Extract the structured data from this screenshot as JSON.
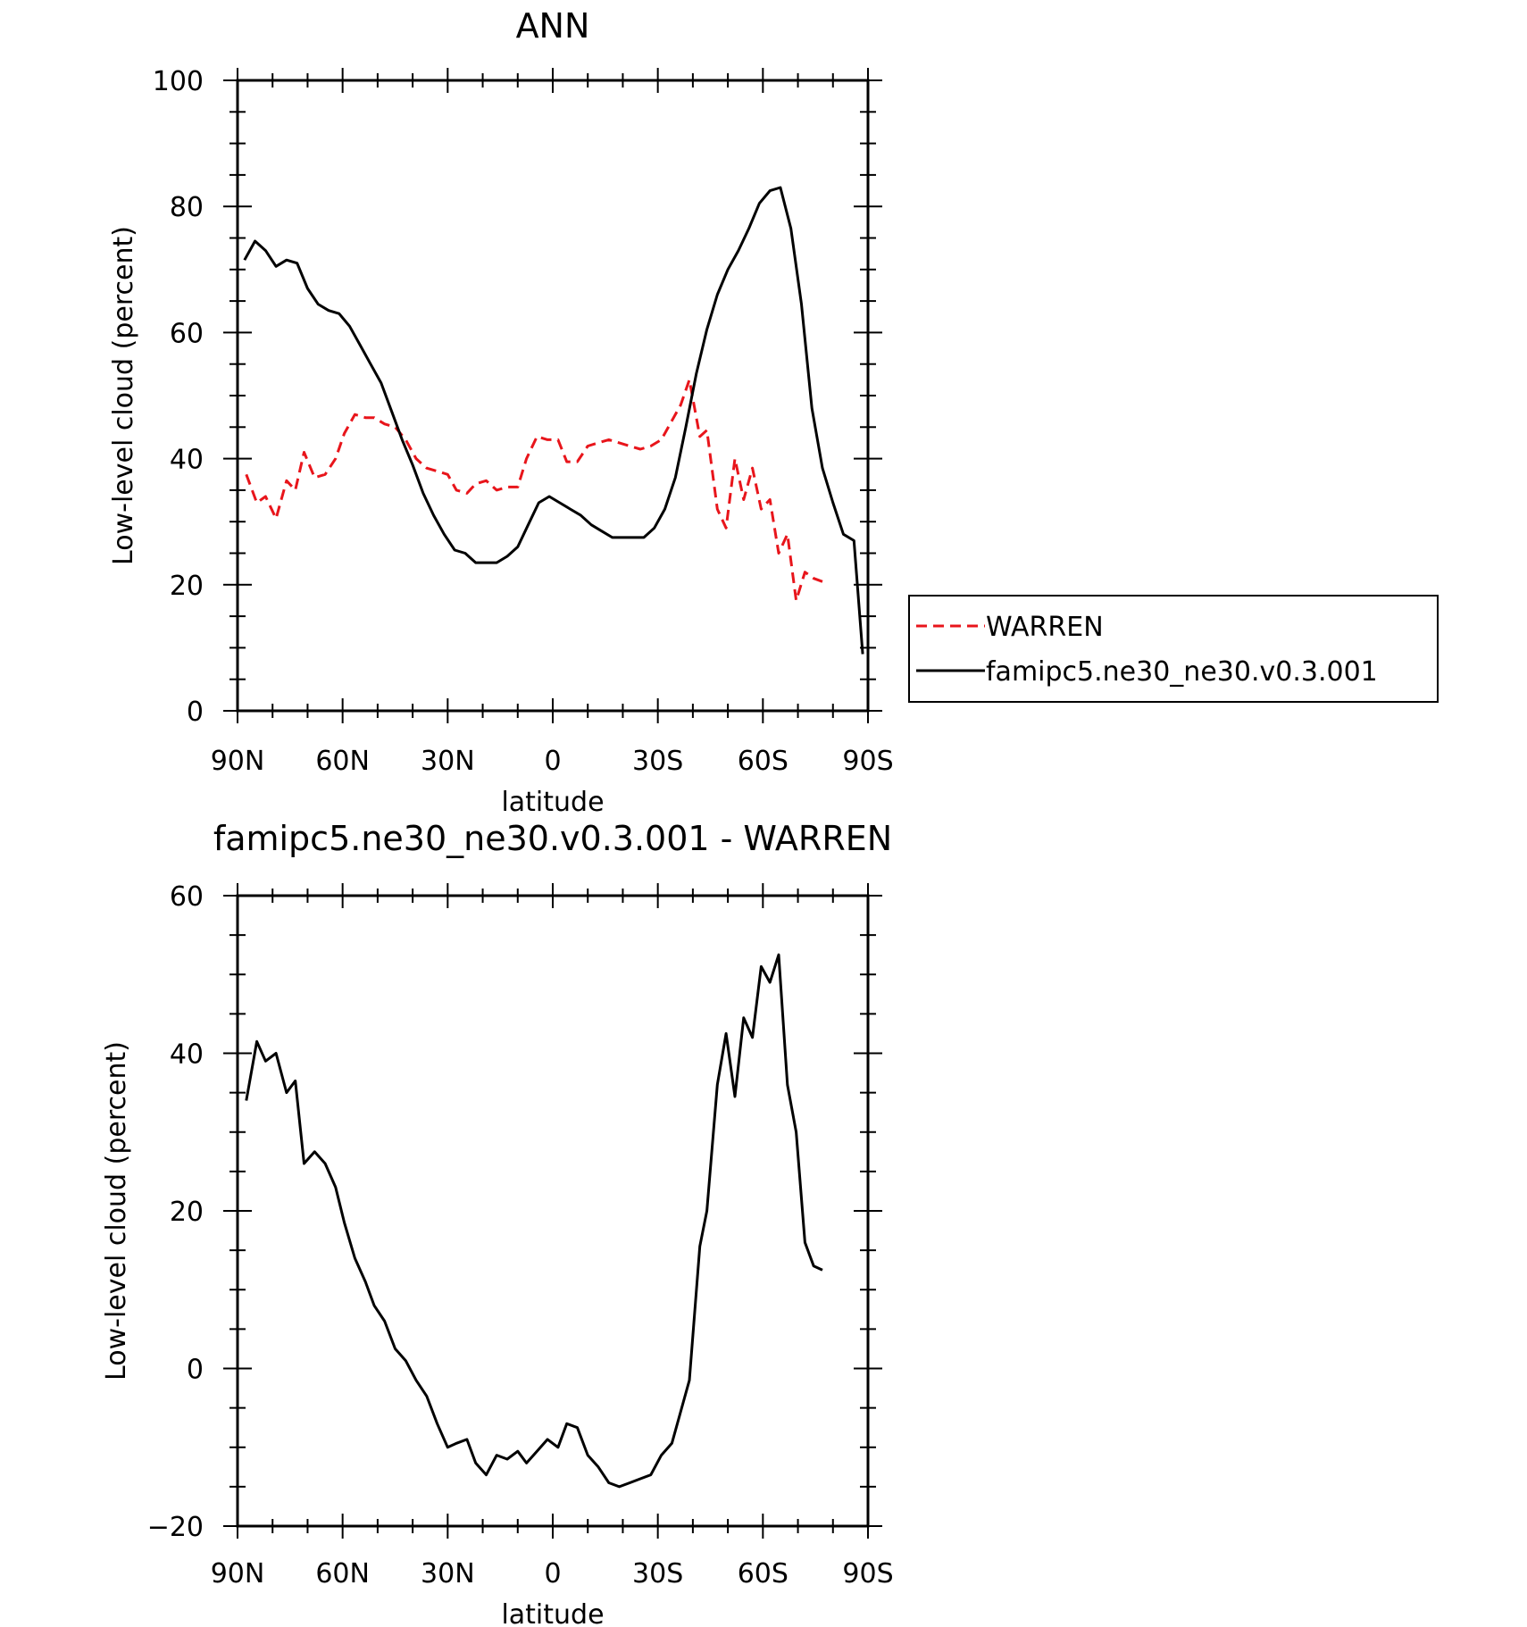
{
  "chart_data": [
    {
      "type": "line",
      "title": "ANN",
      "xlabel": "latitude",
      "ylabel": "Low-level cloud (percent)",
      "ylim": [
        0,
        100
      ],
      "xlim": [
        90,
        -90
      ],
      "x_unit_note": "",
      "xticks": [
        {
          "value": 90,
          "label": "90N"
        },
        {
          "value": 60,
          "label": "60N"
        },
        {
          "value": 30,
          "label": "30N"
        },
        {
          "value": 0,
          "label": "0"
        },
        {
          "value": -30,
          "label": "30S"
        },
        {
          "value": -60,
          "label": "60S"
        },
        {
          "value": -90,
          "label": "90S"
        }
      ],
      "yticks": [
        0,
        20,
        40,
        60,
        80,
        100
      ],
      "grid": false,
      "legend_position": "right",
      "series": [
        {
          "name": "WARREN",
          "color": "#e8151b",
          "style": "dashed",
          "x": [
            87.5,
            84.5,
            82,
            79,
            76,
            73.5,
            71,
            68,
            65,
            62,
            59.5,
            56.5,
            53.5,
            51,
            48,
            45,
            42,
            39,
            36,
            33,
            30,
            27.5,
            24.5,
            22,
            19,
            16,
            13,
            10,
            7.5,
            4.5,
            1.5,
            -1.5,
            -4,
            -7,
            -10,
            -13,
            -16,
            -19,
            -22,
            -25,
            -28,
            -31,
            -34,
            -36.5,
            -39,
            -42,
            -44,
            -47,
            -49.5,
            -52,
            -54.5,
            -57,
            -59.5,
            -62,
            -64.5,
            -67,
            -69.5,
            -72,
            -74.5,
            -77
          ],
          "y": [
            37.5,
            33,
            34,
            30.5,
            36.5,
            35,
            41,
            37,
            37.5,
            40,
            44,
            47,
            46.5,
            46.5,
            45.5,
            45,
            43,
            40,
            38.5,
            38,
            37.5,
            35,
            34.5,
            36,
            36.5,
            35,
            35.5,
            35.5,
            40,
            43.5,
            43,
            43,
            39.5,
            39.5,
            42,
            42.5,
            43,
            42.5,
            42,
            41.5,
            42,
            43,
            46,
            48.5,
            52.5,
            43.5,
            44.5,
            32,
            29,
            40,
            33.5,
            38.5,
            32,
            33.5,
            25,
            28,
            17.5,
            22,
            21,
            20.5
          ]
        },
        {
          "name": "famipc5.ne30_ne30.v0.3.001",
          "color": "#000000",
          "style": "solid",
          "x": [
            88,
            85,
            82,
            79,
            76,
            73,
            70,
            67,
            64,
            61,
            58,
            55,
            52,
            49,
            46,
            43,
            40,
            37,
            34,
            31,
            28,
            25,
            22,
            19,
            16,
            13,
            10,
            7,
            4,
            1,
            -2,
            -5,
            -8,
            -11,
            -14,
            -17,
            -20,
            -23,
            -26,
            -29,
            -32,
            -35,
            -38,
            -41,
            -44,
            -47,
            -50,
            -53,
            -56,
            -59,
            -62,
            -65,
            -68,
            -71,
            -74,
            -77,
            -80,
            -83,
            -86,
            -88.5
          ],
          "y": [
            71.5,
            74.5,
            73,
            70.5,
            71.5,
            71,
            67,
            64.5,
            63.5,
            63,
            61,
            58,
            55,
            52,
            47.5,
            43,
            39,
            34.5,
            31,
            28,
            25.5,
            25,
            23.5,
            23.5,
            23.5,
            24.5,
            26,
            29.5,
            33,
            34,
            33,
            32,
            31,
            29.5,
            28.5,
            27.5,
            27.5,
            27.5,
            27.5,
            29,
            32,
            37,
            45,
            53.5,
            60.5,
            66,
            70,
            73,
            76.5,
            80.5,
            82.5,
            83,
            76.5,
            64.5,
            48,
            38.5,
            33,
            28,
            27,
            9
          ]
        }
      ]
    },
    {
      "type": "line",
      "title": "famipc5.ne30_ne30.v0.3.001 - WARREN",
      "xlabel": "latitude",
      "ylabel": "Low-level cloud (percent)",
      "ylim": [
        -20,
        60
      ],
      "xlim": [
        90,
        -90
      ],
      "xticks": [
        {
          "value": 90,
          "label": "90N"
        },
        {
          "value": 60,
          "label": "60N"
        },
        {
          "value": 30,
          "label": "30N"
        },
        {
          "value": 0,
          "label": "0"
        },
        {
          "value": -30,
          "label": "30S"
        },
        {
          "value": -60,
          "label": "60S"
        },
        {
          "value": -90,
          "label": "90S"
        }
      ],
      "yticks": [
        -20,
        0,
        20,
        40,
        60
      ],
      "grid": false,
      "series": [
        {
          "color": "#000000",
          "style": "solid",
          "x": [
            87.5,
            84.5,
            82,
            79,
            76,
            73.5,
            71,
            68,
            65,
            62,
            59.5,
            56.5,
            53.5,
            51,
            48,
            45,
            42,
            39,
            36,
            33,
            30,
            27.5,
            24.5,
            22,
            19,
            16,
            13,
            10,
            7.5,
            4.5,
            1.5,
            -1.5,
            -4,
            -7,
            -10,
            -13,
            -16,
            -19,
            -22,
            -25,
            -28,
            -31,
            -34,
            -36.5,
            -39,
            -42,
            -44,
            -47,
            -49.5,
            -52,
            -54.5,
            -57,
            -59.5,
            -62,
            -64.5,
            -67,
            -69.5,
            -72,
            -74.5,
            -77
          ],
          "y": [
            34,
            41.5,
            39,
            40,
            35,
            36.5,
            26,
            27.5,
            26,
            23,
            18.5,
            14,
            11,
            8,
            6,
            2.5,
            1,
            -1.5,
            -3.5,
            -7,
            -10,
            -9.5,
            -9,
            -12,
            -13.5,
            -11,
            -11.5,
            -10.5,
            -12,
            -10.5,
            -9,
            -10,
            -7,
            -7.5,
            -11,
            -12.5,
            -14.5,
            -15,
            -14.5,
            -14,
            -13.5,
            -11,
            -9.5,
            -5.5,
            -1.5,
            15.5,
            20,
            36,
            42.5,
            34.5,
            44.5,
            42,
            51,
            49,
            52.5,
            36,
            30,
            16,
            13,
            12.5
          ]
        }
      ]
    }
  ]
}
